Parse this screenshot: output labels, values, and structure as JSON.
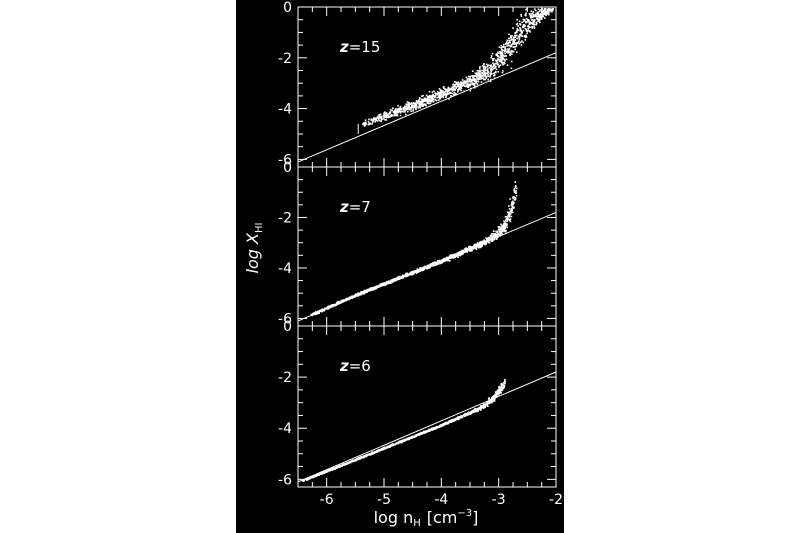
{
  "chart_data": [
    {
      "type": "scatter",
      "panel_label": "z=15",
      "x_ticks": [
        "-6",
        "-5",
        "-4",
        "-3",
        "-2"
      ],
      "y_ticks": [
        "0",
        "-2",
        "-4",
        "-6"
      ],
      "xlim": [
        -6.5,
        -2
      ],
      "ylim": [
        -6.3,
        0
      ],
      "reference_line": {
        "x": [
          -6.5,
          -2
        ],
        "y": [
          -6.1,
          -1.8
        ]
      },
      "error_bar": {
        "x": -5.45,
        "y": [
          -5.0,
          -4.6
        ]
      },
      "scatter_trend": {
        "x": [
          -5.4,
          -5.0,
          -4.5,
          -4.0,
          -3.5,
          -3.2,
          -3.0,
          -2.8,
          -2.6,
          -2.4,
          -2.2,
          -2.05
        ],
        "y": [
          -4.6,
          -4.25,
          -3.85,
          -3.4,
          -2.9,
          -2.5,
          -2.05,
          -1.45,
          -0.85,
          -0.4,
          -0.1,
          0.0
        ],
        "spread": [
          0.12,
          0.15,
          0.18,
          0.22,
          0.3,
          0.4,
          0.55,
          0.6,
          0.55,
          0.45,
          0.3,
          0.1
        ]
      }
    },
    {
      "type": "scatter",
      "panel_label": "z=7",
      "x_ticks": [
        "-6",
        "-5",
        "-4",
        "-3",
        "-2"
      ],
      "y_ticks": [
        "0",
        "-2",
        "-4",
        "-6"
      ],
      "xlim": [
        -6.5,
        -2
      ],
      "ylim": [
        -6.3,
        0
      ],
      "reference_line": {
        "x": [
          -6.5,
          -2
        ],
        "y": [
          -6.1,
          -1.8
        ]
      },
      "scatter_trend": {
        "x": [
          -6.3,
          -5.5,
          -5.0,
          -4.5,
          -4.0,
          -3.6,
          -3.3,
          -3.1,
          -2.9,
          -2.8,
          -2.7
        ],
        "y": [
          -5.85,
          -5.05,
          -4.6,
          -4.15,
          -3.7,
          -3.3,
          -3.0,
          -2.75,
          -2.3,
          -1.7,
          -0.8
        ],
        "spread": [
          0.05,
          0.05,
          0.05,
          0.06,
          0.07,
          0.09,
          0.12,
          0.18,
          0.3,
          0.4,
          0.4
        ]
      }
    },
    {
      "type": "scatter",
      "panel_label": "z=6",
      "x_ticks": [
        "-6",
        "-5",
        "-4",
        "-3",
        "-2"
      ],
      "y_ticks": [
        "0",
        "-2",
        "-4",
        "-6"
      ],
      "xlim": [
        -6.5,
        -2
      ],
      "ylim": [
        -6.3,
        0
      ],
      "xlabel": "log nH [cm−3]",
      "reference_line": {
        "x": [
          -6.5,
          -2
        ],
        "y": [
          -6.1,
          -1.8
        ]
      },
      "scatter_trend": {
        "x": [
          -6.45,
          -6.0,
          -5.5,
          -5.0,
          -4.5,
          -4.0,
          -3.6,
          -3.3,
          -3.1,
          -2.9
        ],
        "y": [
          -6.05,
          -5.65,
          -5.2,
          -4.75,
          -4.3,
          -3.85,
          -3.45,
          -3.15,
          -2.8,
          -2.2
        ],
        "spread": [
          0.03,
          0.03,
          0.03,
          0.03,
          0.03,
          0.04,
          0.05,
          0.08,
          0.12,
          0.2
        ]
      }
    }
  ],
  "figure": {
    "ylabel_main": "log X",
    "ylabel_sub": "HI",
    "xlabel_main": "log n",
    "xlabel_sub": "H",
    "xlabel_unit_open": "[cm",
    "xlabel_unit_exp": "−3",
    "xlabel_unit_close": "]",
    "background": "#000000",
    "ink": "#ffffff"
  }
}
